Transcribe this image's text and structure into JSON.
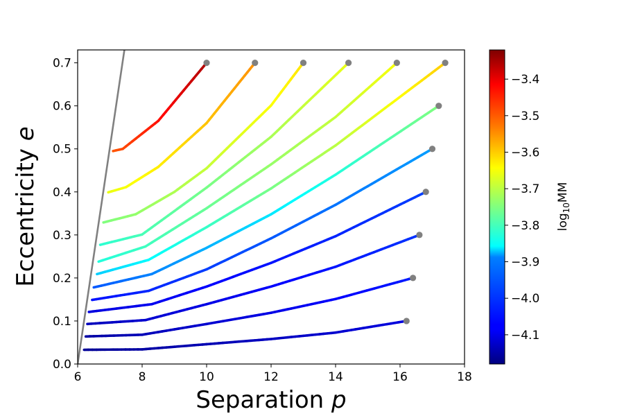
{
  "chart_data": {
    "type": "line",
    "xlabel": "Separation",
    "xlabel_var": "p",
    "ylabel": "Eccentricity",
    "ylabel_var": "e",
    "xlim": [
      6,
      18
    ],
    "ylim": [
      0,
      0.73
    ],
    "xticks": [
      6,
      8,
      10,
      12,
      14,
      16,
      18
    ],
    "yticks": [
      0.0,
      0.1,
      0.2,
      0.3,
      0.4,
      0.5,
      0.6,
      0.7
    ],
    "xtick_labels": [
      "6",
      "8",
      "10",
      "12",
      "14",
      "16",
      "18"
    ],
    "ytick_labels": [
      "0.0",
      "0.1",
      "0.2",
      "0.3",
      "0.4",
      "0.5",
      "0.6",
      "0.7"
    ],
    "grid": false,
    "colorbar": {
      "label_main": "log",
      "label_sub": "10",
      "label_suffix": "MM",
      "range": [
        -4.18,
        -3.32
      ],
      "ticks": [
        -3.4,
        -3.5,
        -3.6,
        -3.7,
        -3.8,
        -3.9,
        -4.0,
        -4.1
      ],
      "tick_labels": [
        "−3.4",
        "−3.5",
        "−3.6",
        "−3.7",
        "−3.8",
        "−3.9",
        "−4.0",
        "−4.1"
      ]
    },
    "separatrix": {
      "color": "#808080",
      "points": [
        [
          6.0,
          0.0
        ],
        [
          7.45,
          0.73
        ]
      ]
    },
    "endpoint_color": "#808080",
    "curves": [
      {
        "endpoint": [
          16.2,
          0.1
        ],
        "points": [
          [
            6.2,
            0.033
          ],
          [
            8.0,
            0.034
          ],
          [
            10.0,
            0.046
          ],
          [
            12.0,
            0.058
          ],
          [
            14.0,
            0.073
          ],
          [
            16.2,
            0.1
          ]
        ],
        "log10MM": [
          -4.16,
          -4.1
        ]
      },
      {
        "endpoint": [
          16.4,
          0.2
        ],
        "points": [
          [
            6.25,
            0.064
          ],
          [
            8.0,
            0.068
          ],
          [
            10.0,
            0.093
          ],
          [
            12.0,
            0.119
          ],
          [
            14.0,
            0.151
          ],
          [
            16.4,
            0.2
          ]
        ],
        "log10MM": [
          -4.15,
          -4.05
        ]
      },
      {
        "endpoint": [
          16.6,
          0.3
        ],
        "points": [
          [
            6.3,
            0.093
          ],
          [
            8.1,
            0.102
          ],
          [
            10.0,
            0.139
          ],
          [
            12.0,
            0.18
          ],
          [
            14.0,
            0.226
          ],
          [
            16.6,
            0.3
          ]
        ],
        "log10MM": [
          -4.13,
          -4.03
        ]
      },
      {
        "endpoint": [
          16.8,
          0.4
        ],
        "points": [
          [
            6.35,
            0.121
          ],
          [
            8.3,
            0.139
          ],
          [
            10.0,
            0.18
          ],
          [
            12.0,
            0.235
          ],
          [
            14.0,
            0.297
          ],
          [
            16.8,
            0.4
          ]
        ],
        "log10MM": [
          -4.1,
          -4.02
        ]
      },
      {
        "endpoint": [
          17.0,
          0.5
        ],
        "points": [
          [
            6.45,
            0.149
          ],
          [
            8.2,
            0.17
          ],
          [
            10.0,
            0.22
          ],
          [
            12.0,
            0.292
          ],
          [
            14.0,
            0.37
          ],
          [
            17.0,
            0.5
          ]
        ],
        "log10MM": [
          -4.06,
          -3.94
        ]
      },
      {
        "endpoint": [
          17.2,
          0.6
        ],
        "points": [
          [
            6.5,
            0.178
          ],
          [
            8.3,
            0.209
          ],
          [
            10.0,
            0.27
          ],
          [
            12.0,
            0.348
          ],
          [
            14.0,
            0.44
          ],
          [
            17.2,
            0.6
          ]
        ],
        "log10MM": [
          -4.0,
          -3.75
        ]
      },
      {
        "endpoint": [
          17.4,
          0.7
        ],
        "points": [
          [
            6.6,
            0.209
          ],
          [
            8.2,
            0.242
          ],
          [
            10.0,
            0.318
          ],
          [
            12.0,
            0.408
          ],
          [
            14.0,
            0.508
          ],
          [
            17.4,
            0.7
          ]
        ],
        "log10MM": [
          -3.9,
          -3.6
        ]
      },
      {
        "endpoint": [
          15.9,
          0.7
        ],
        "points": [
          [
            6.65,
            0.238
          ],
          [
            8.1,
            0.273
          ],
          [
            10.0,
            0.362
          ],
          [
            12.0,
            0.464
          ],
          [
            14.0,
            0.574
          ],
          [
            15.9,
            0.7
          ]
        ],
        "log10MM": [
          -3.83,
          -3.65
        ]
      },
      {
        "endpoint": [
          14.4,
          0.7
        ],
        "points": [
          [
            6.7,
            0.277
          ],
          [
            8.0,
            0.301
          ],
          [
            10.0,
            0.41
          ],
          [
            12.0,
            0.528
          ],
          [
            14.4,
            0.7
          ]
        ],
        "log10MM": [
          -3.82,
          -3.66
        ]
      },
      {
        "endpoint": [
          13.0,
          0.7
        ],
        "points": [
          [
            6.8,
            0.329
          ],
          [
            7.8,
            0.348
          ],
          [
            9.0,
            0.4
          ],
          [
            10.0,
            0.455
          ],
          [
            12.0,
            0.601
          ],
          [
            13.0,
            0.7
          ]
        ],
        "log10MM": [
          -3.75,
          -3.62
        ]
      },
      {
        "endpoint": [
          11.5,
          0.7
        ],
        "points": [
          [
            6.95,
            0.399
          ],
          [
            7.5,
            0.411
          ],
          [
            8.5,
            0.458
          ],
          [
            10.0,
            0.56
          ],
          [
            11.5,
            0.7
          ]
        ],
        "log10MM": [
          -3.66,
          -3.55
        ]
      },
      {
        "endpoint": [
          10.0,
          0.7
        ],
        "points": [
          [
            7.1,
            0.495
          ],
          [
            7.4,
            0.5
          ],
          [
            8.5,
            0.565
          ],
          [
            10.0,
            0.7
          ]
        ],
        "log10MM": [
          -3.5,
          -3.36
        ]
      }
    ]
  }
}
